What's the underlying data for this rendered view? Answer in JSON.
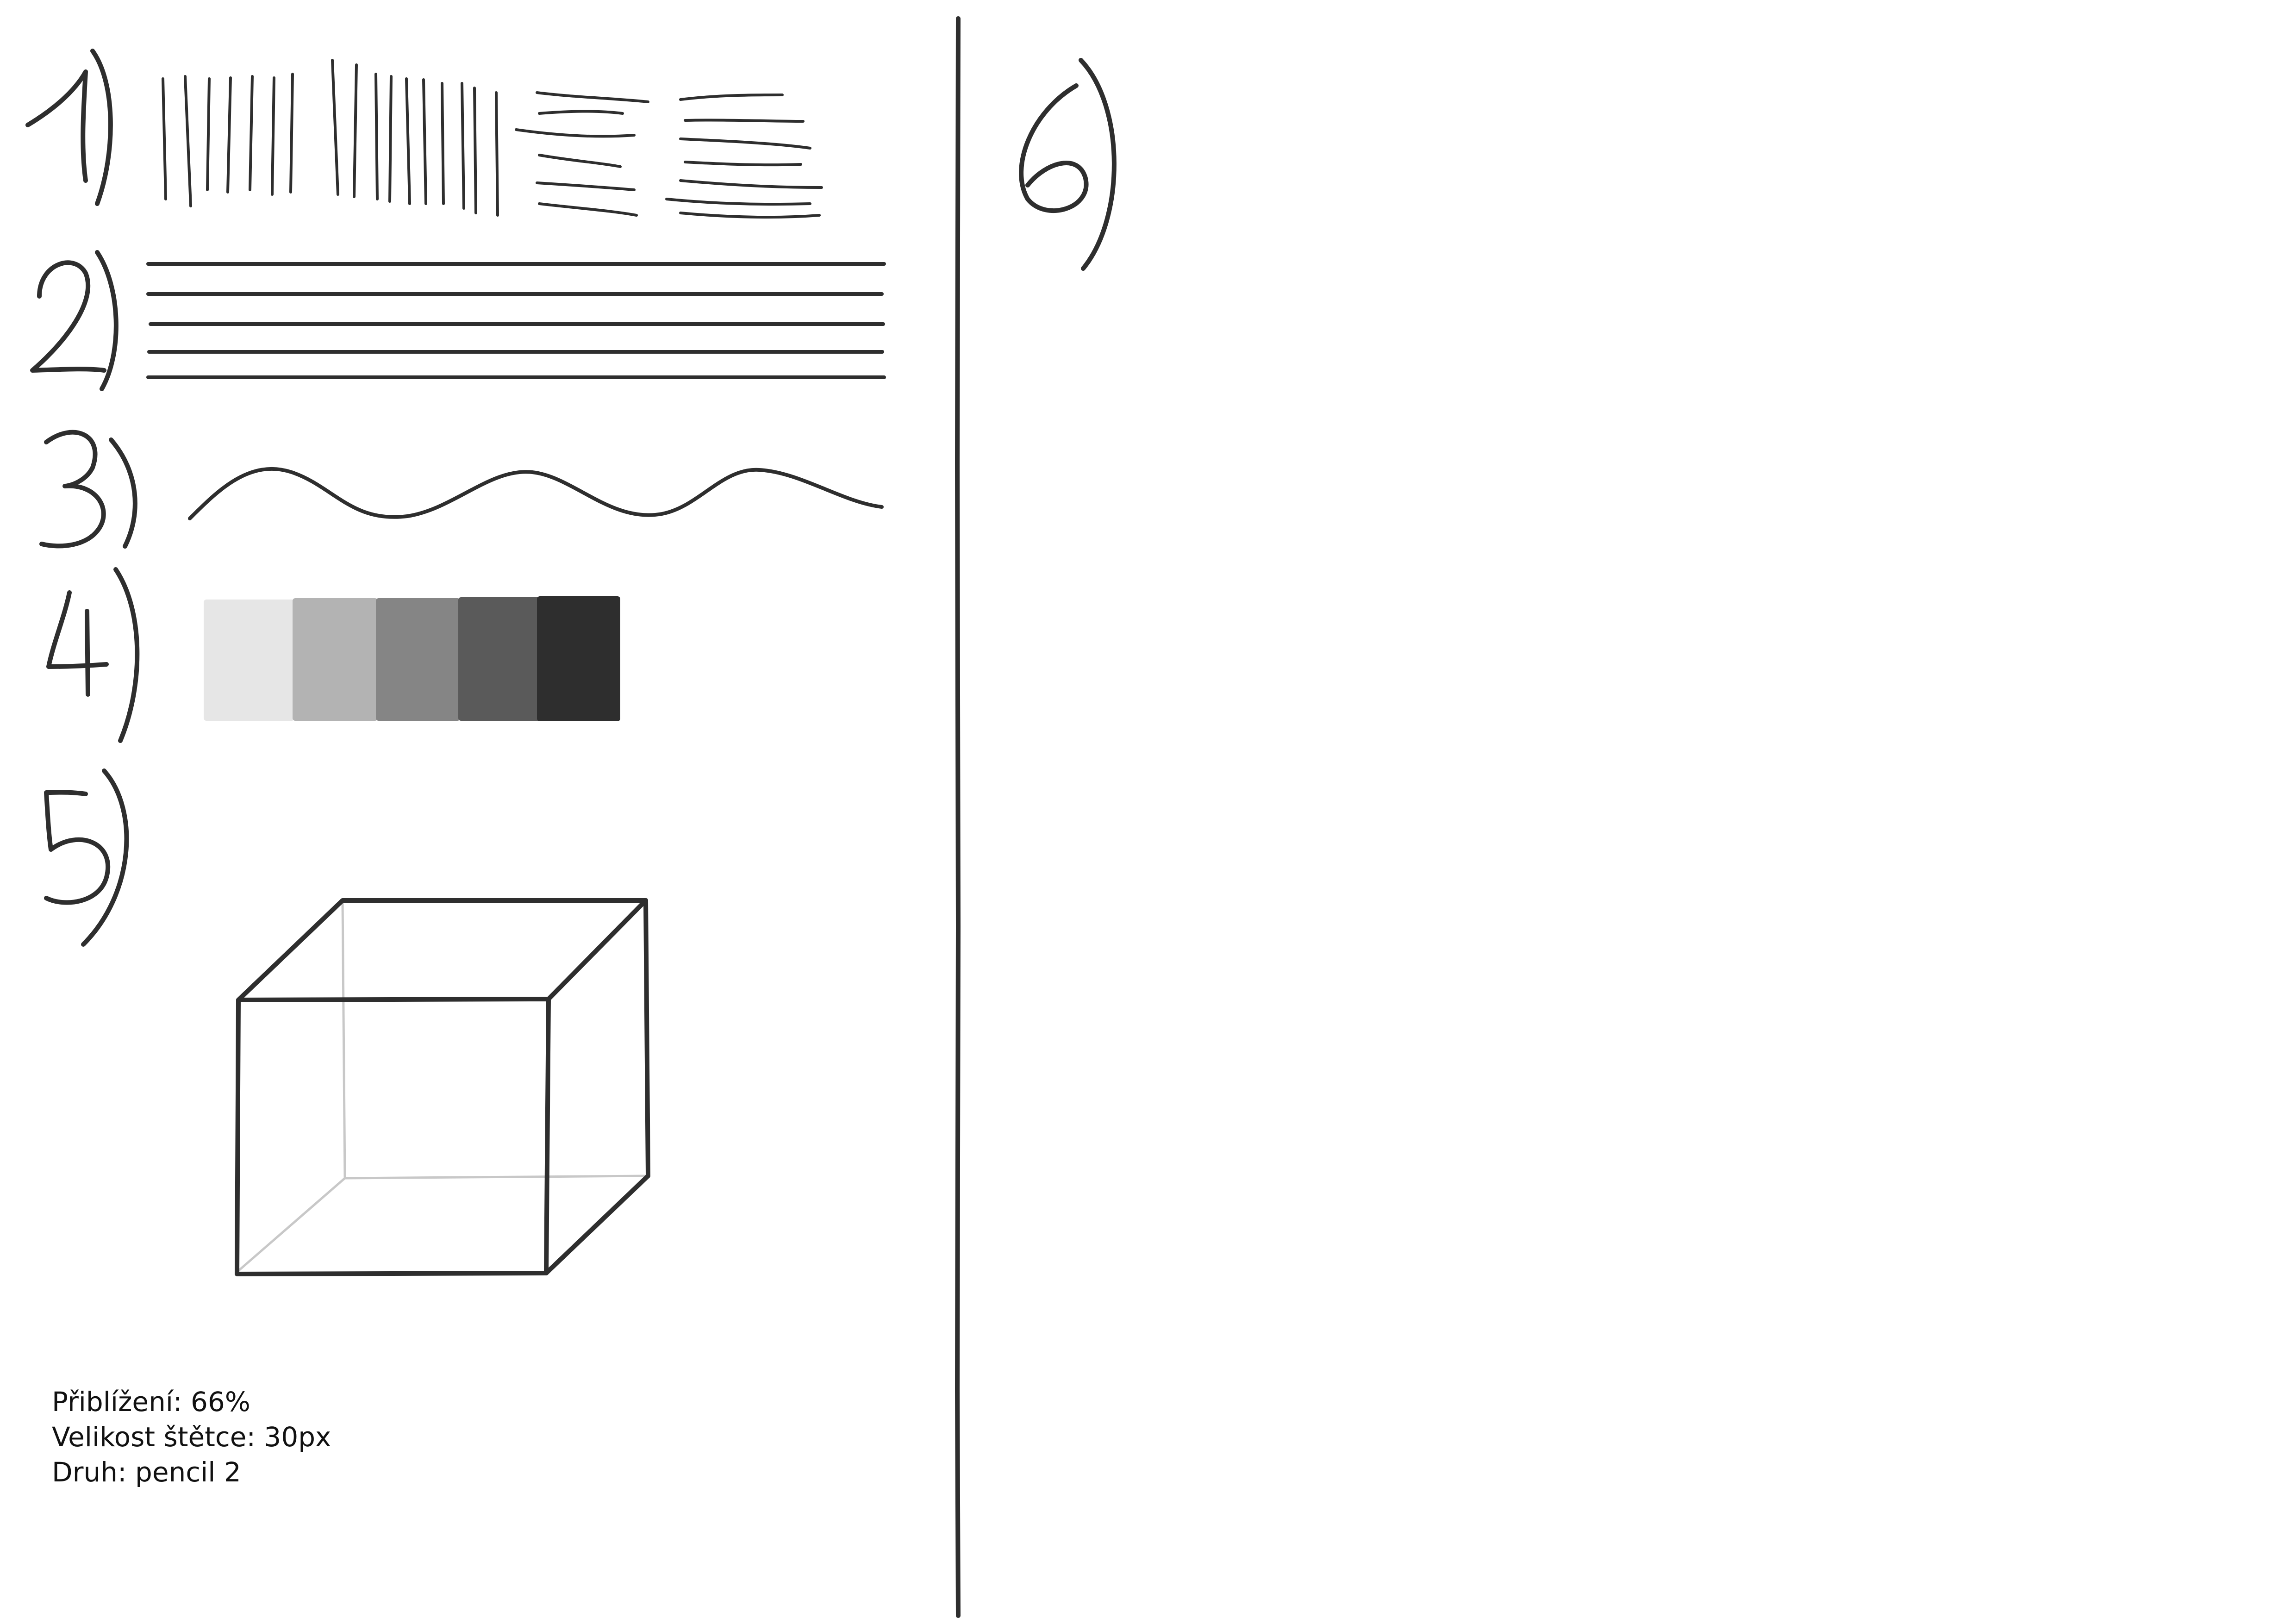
{
  "info": {
    "zoom_label": "Přiblížení: 66%",
    "brush_size_label": "Velikost štětce: 30px",
    "brush_type_label": "Druh: pencil 2"
  },
  "exercises": [
    {
      "number": "1)",
      "task": "hatching-strokes"
    },
    {
      "number": "2)",
      "task": "straight-lines"
    },
    {
      "number": "3)",
      "task": "wavy-line"
    },
    {
      "number": "4)",
      "task": "tonal-scale"
    },
    {
      "number": "5)",
      "task": "cube"
    },
    {
      "number": "6)",
      "task": "empty"
    }
  ],
  "tonal_scale": {
    "colors": [
      "#e6e6e6",
      "#b3b3b3",
      "#858585",
      "#5a5a5a",
      "#2e2e2e"
    ]
  }
}
